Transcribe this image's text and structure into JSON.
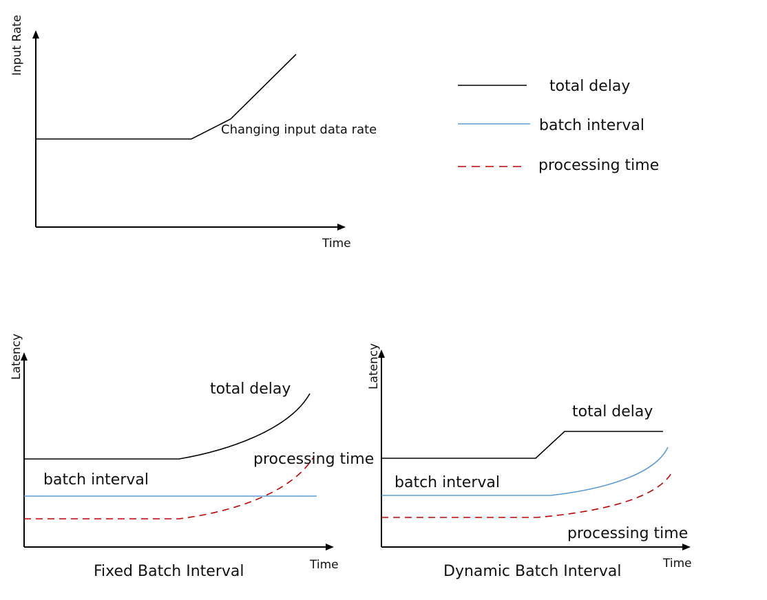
{
  "input_chart": {
    "y_axis_label": "Input Rate",
    "x_axis_label": "Time",
    "curve_label": "Changing input data rate"
  },
  "legend": {
    "items": [
      {
        "label": "total delay",
        "color": "#000000",
        "style": "solid"
      },
      {
        "label": "batch interval",
        "color": "#5b9bd5",
        "style": "solid"
      },
      {
        "label": "processing time",
        "color": "#c00000",
        "style": "dashed"
      }
    ]
  },
  "fixed_chart": {
    "y_axis_label": "Latency",
    "x_axis_label": "Time",
    "total_delay_label": "total delay",
    "processing_time_label": "processing time",
    "batch_interval_label": "batch interval",
    "caption": "Fixed Batch Interval"
  },
  "dynamic_chart": {
    "y_axis_label": "Latency",
    "x_axis_label": "Time",
    "total_delay_label": "total delay",
    "batch_interval_label": "batch interval",
    "processing_time_label": "processing time",
    "caption": "Dynamic Batch Interval"
  }
}
